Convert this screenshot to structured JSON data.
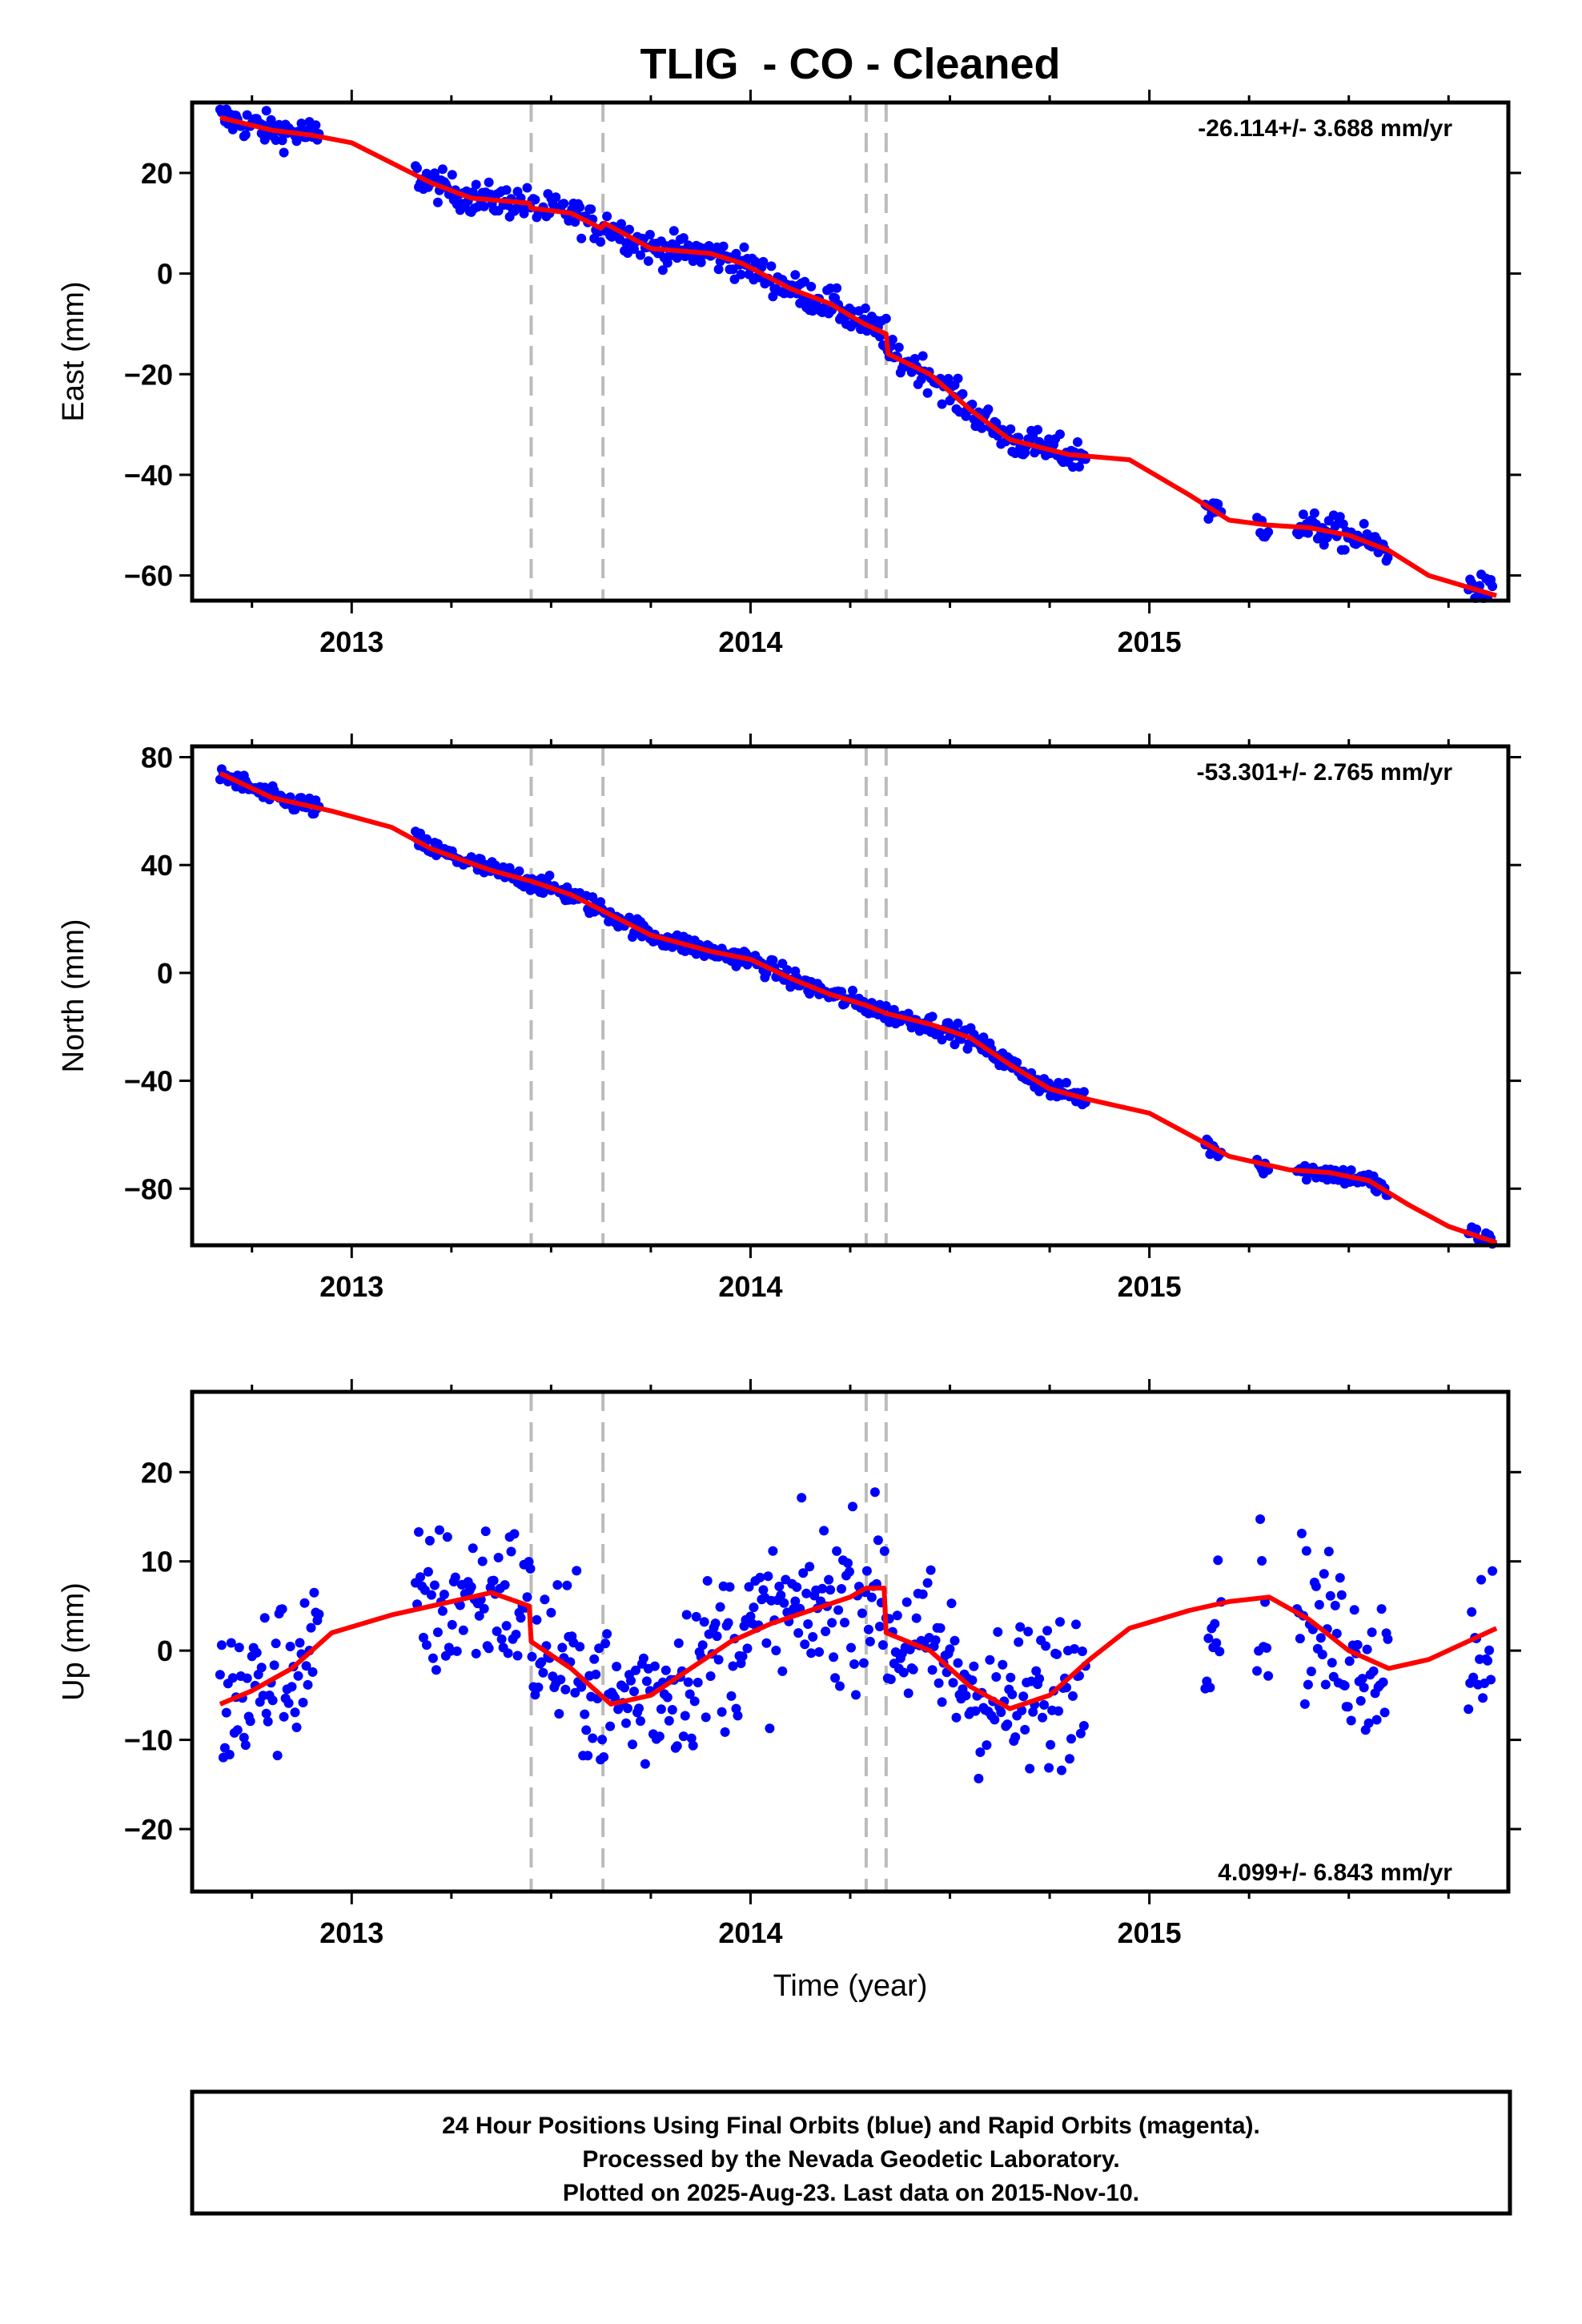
{
  "title": "TLIG  - CO - Cleaned",
  "xlabel": "Time (year)",
  "footer": {
    "line1": "24 Hour Positions Using Final Orbits (blue) and Rapid Orbits (magenta).",
    "line2": "Processed by the Nevada Geodetic Laboratory.",
    "line3": "Plotted on 2025-Aug-23. Last data on 2015-Nov-10."
  },
  "colors": {
    "points": "#0000ff",
    "model": "#ff0000",
    "event_lines": "#bbbbbb",
    "frame": "#000000"
  },
  "chart_data": [
    {
      "type": "scatter",
      "ylabel": "East (mm)",
      "rate_label": "-26.114+/- 3.688 mm/yr",
      "rate_position": "top-right",
      "x_range": [
        2012.6,
        2015.9
      ],
      "ylim": [
        -65,
        34
      ],
      "x_ticks": [
        2013,
        2014,
        2015
      ],
      "y_ticks": [
        -60,
        -40,
        -20,
        0,
        20
      ],
      "event_lines": [
        2013.45,
        2013.63,
        2014.29,
        2014.34
      ],
      "series": [
        {
          "role": "observations",
          "segments": [
            [
              2012.67,
              2012.92
            ],
            [
              2013.16,
              2014.84
            ],
            [
              2015.14,
              2015.18
            ],
            [
              2015.27,
              2015.3
            ],
            [
              2015.37,
              2015.6
            ],
            [
              2015.8,
              2015.86
            ]
          ],
          "noise": 1.6,
          "spacing": 0.004
        },
        {
          "role": "model",
          "knots": [
            [
              2012.67,
              31
            ],
            [
              2012.8,
              28.5
            ],
            [
              2012.9,
              27.5
            ],
            [
              2013.0,
              26
            ],
            [
              2013.2,
              18
            ],
            [
              2013.3,
              15
            ],
            [
              2013.445,
              14
            ],
            [
              2013.45,
              13
            ],
            [
              2013.55,
              12
            ],
            [
              2013.625,
              9
            ],
            [
              2013.635,
              10
            ],
            [
              2013.75,
              5
            ],
            [
              2013.9,
              4
            ],
            [
              2013.98,
              2
            ],
            [
              2014.1,
              -3
            ],
            [
              2014.2,
              -6
            ],
            [
              2014.285,
              -10
            ],
            [
              2014.34,
              -12
            ],
            [
              2014.345,
              -16
            ],
            [
              2014.45,
              -20
            ],
            [
              2014.55,
              -27
            ],
            [
              2014.65,
              -33
            ],
            [
              2014.8,
              -36
            ],
            [
              2014.95,
              -37
            ],
            [
              2015.1,
              -44
            ],
            [
              2015.2,
              -49
            ],
            [
              2015.3,
              -50
            ],
            [
              2015.4,
              -50.5
            ],
            [
              2015.5,
              -52
            ],
            [
              2015.6,
              -55
            ],
            [
              2015.7,
              -60
            ],
            [
              2015.87,
              -64
            ]
          ]
        }
      ]
    },
    {
      "type": "scatter",
      "ylabel": "North (mm)",
      "rate_label": "-53.301+/- 2.765 mm/yr",
      "rate_position": "top-right",
      "x_range": [
        2012.6,
        2015.9
      ],
      "ylim": [
        -101,
        84
      ],
      "x_ticks": [
        2013,
        2014,
        2015
      ],
      "y_ticks": [
        -80,
        -40,
        0,
        40,
        80
      ],
      "event_lines": [
        2013.45,
        2013.63,
        2014.29,
        2014.34
      ],
      "series": [
        {
          "role": "observations",
          "segments": [
            [
              2012.67,
              2012.92
            ],
            [
              2013.16,
              2014.84
            ],
            [
              2015.14,
              2015.18
            ],
            [
              2015.27,
              2015.3
            ],
            [
              2015.37,
              2015.6
            ],
            [
              2015.8,
              2015.86
            ]
          ],
          "noise": 1.8,
          "spacing": 0.004
        },
        {
          "role": "model",
          "knots": [
            [
              2012.67,
              74
            ],
            [
              2012.8,
              65
            ],
            [
              2012.95,
              60
            ],
            [
              2013.1,
              54
            ],
            [
              2013.2,
              46
            ],
            [
              2013.35,
              38
            ],
            [
              2013.45,
              34
            ],
            [
              2013.55,
              29
            ],
            [
              2013.63,
              23
            ],
            [
              2013.75,
              14
            ],
            [
              2013.9,
              8
            ],
            [
              2014.0,
              5
            ],
            [
              2014.1,
              -2
            ],
            [
              2014.2,
              -8
            ],
            [
              2014.29,
              -12
            ],
            [
              2014.34,
              -15
            ],
            [
              2014.45,
              -19
            ],
            [
              2014.55,
              -24
            ],
            [
              2014.65,
              -34
            ],
            [
              2014.75,
              -43
            ],
            [
              2014.85,
              -47
            ],
            [
              2015.0,
              -52
            ],
            [
              2015.1,
              -60
            ],
            [
              2015.2,
              -68
            ],
            [
              2015.35,
              -73
            ],
            [
              2015.45,
              -74
            ],
            [
              2015.55,
              -77
            ],
            [
              2015.65,
              -86
            ],
            [
              2015.75,
              -94
            ],
            [
              2015.87,
              -100
            ]
          ]
        }
      ]
    },
    {
      "type": "scatter",
      "ylabel": "Up (mm)",
      "rate_label": "4.099+/- 6.843 mm/yr",
      "rate_position": "bottom-right",
      "x_range": [
        2012.6,
        2015.9
      ],
      "ylim": [
        -27,
        29
      ],
      "x_ticks": [
        2013,
        2014,
        2015
      ],
      "y_ticks": [
        -20,
        -10,
        0,
        10,
        20
      ],
      "event_lines": [
        2013.45,
        2013.63,
        2014.29,
        2014.34
      ],
      "series": [
        {
          "role": "observations",
          "segments": [
            [
              2012.67,
              2012.92
            ],
            [
              2013.16,
              2014.84
            ],
            [
              2015.14,
              2015.18
            ],
            [
              2015.27,
              2015.3
            ],
            [
              2015.37,
              2015.6
            ],
            [
              2015.8,
              2015.86
            ]
          ],
          "noise": 4.5,
          "spacing": 0.004
        },
        {
          "role": "model",
          "knots": [
            [
              2012.67,
              -6
            ],
            [
              2012.75,
              -4.5
            ],
            [
              2012.85,
              -2
            ],
            [
              2012.95,
              2
            ],
            [
              2013.1,
              4
            ],
            [
              2013.25,
              5.5
            ],
            [
              2013.35,
              6.5
            ],
            [
              2013.445,
              5
            ],
            [
              2013.45,
              1
            ],
            [
              2013.55,
              -2
            ],
            [
              2013.65,
              -6
            ],
            [
              2013.75,
              -5
            ],
            [
              2013.85,
              -2
            ],
            [
              2013.95,
              1
            ],
            [
              2014.05,
              3
            ],
            [
              2014.15,
              4.5
            ],
            [
              2014.25,
              6
            ],
            [
              2014.29,
              7
            ],
            [
              2014.335,
              7
            ],
            [
              2014.34,
              2
            ],
            [
              2014.45,
              0
            ],
            [
              2014.55,
              -4
            ],
            [
              2014.65,
              -6.5
            ],
            [
              2014.75,
              -5
            ],
            [
              2014.85,
              -1
            ],
            [
              2014.95,
              2.5
            ],
            [
              2015.1,
              4.5
            ],
            [
              2015.2,
              5.5
            ],
            [
              2015.3,
              6
            ],
            [
              2015.4,
              3.5
            ],
            [
              2015.5,
              0
            ],
            [
              2015.6,
              -2
            ],
            [
              2015.7,
              -1
            ],
            [
              2015.87,
              2.5
            ]
          ]
        }
      ]
    }
  ]
}
